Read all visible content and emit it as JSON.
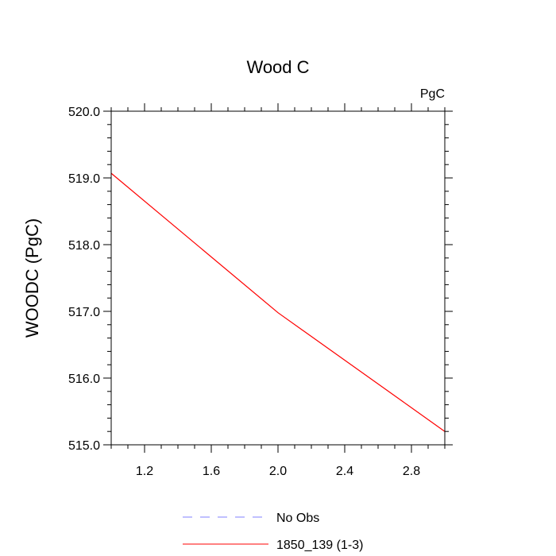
{
  "chart_data": {
    "type": "line",
    "title": "Wood C",
    "units_label": "PgC",
    "xlabel": "",
    "ylabel": "WOODC  (PgC)",
    "xlim": [
      1.0,
      3.0
    ],
    "ylim": [
      515.0,
      520.0
    ],
    "x_ticks": [
      1.2,
      1.6,
      2.0,
      2.4,
      2.8
    ],
    "x_tick_labels": [
      "1.2",
      "1.6",
      "2.0",
      "2.4",
      "2.8"
    ],
    "y_ticks": [
      515.0,
      516.0,
      517.0,
      518.0,
      519.0,
      520.0
    ],
    "y_tick_labels": [
      "515.0",
      "516.0",
      "517.0",
      "518.0",
      "519.0",
      "520.0"
    ],
    "grid": false,
    "legend_position": "bottom",
    "series": [
      {
        "name": "No Obs",
        "color": "#8080ff",
        "style": "dashed",
        "x": [],
        "y": []
      },
      {
        "name": "1850_139 (1-3)",
        "color": "#ff0000",
        "style": "solid",
        "x": [
          1.0,
          2.0,
          3.0
        ],
        "y": [
          519.07,
          516.98,
          515.2
        ]
      }
    ]
  }
}
